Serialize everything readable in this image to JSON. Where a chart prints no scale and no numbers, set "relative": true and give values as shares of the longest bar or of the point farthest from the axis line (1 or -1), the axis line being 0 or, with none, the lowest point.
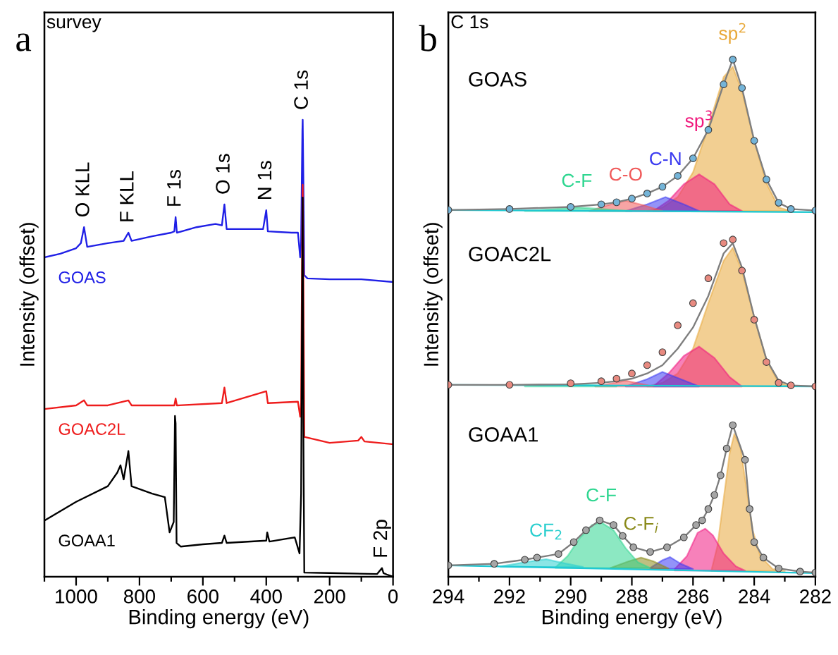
{
  "chart_data": [
    {
      "type": "line",
      "title": "survey",
      "xlabel": "Binding energy (eV)",
      "ylabel": "Intensity (offset)",
      "relative": true,
      "xlim": [
        1100,
        0
      ],
      "xticks": [
        1000,
        800,
        600,
        400,
        200,
        0,
        {
          "value": 1100,
          "label": null
        },
        {
          "value": 900,
          "label": null
        },
        {
          "value": 700,
          "label": null
        },
        {
          "value": 500,
          "label": null
        },
        {
          "value": 300,
          "label": null
        },
        {
          "value": 100,
          "label": null
        }
      ],
      "annotations": [
        "a",
        {
          "text": "O KLL",
          "x": 975,
          "y": 0.765
        },
        {
          "text": "F KLL",
          "x": 835,
          "y": 0.753
        },
        {
          "text": "F 1s",
          "x": 686,
          "y": 0.787
        },
        {
          "text": "O 1s",
          "x": 532,
          "y": 0.815
        },
        {
          "text": "N 1s",
          "x": 400,
          "y": 0.802
        },
        {
          "text": "C 1s",
          "x": 285,
          "y": 1.0
        },
        {
          "text": "F 2p",
          "x": 35,
          "y": 0.019
        }
      ],
      "series": [
        {
          "name": "GOAS",
          "color": "#1f1fe6",
          "x": [
            1100,
            1050,
            1000,
            985,
            975,
            965,
            900,
            850,
            835,
            825,
            760,
            700,
            690,
            686,
            682,
            620,
            560,
            540,
            532,
            525,
            500,
            410,
            400,
            395,
            320,
            300,
            293,
            290,
            286,
            285,
            283,
            280,
            270,
            200,
            100,
            0
          ],
          "values": [
            0.699,
            0.707,
            0.719,
            0.73,
            0.765,
            0.722,
            0.73,
            0.735,
            0.753,
            0.735,
            0.745,
            0.753,
            0.756,
            0.787,
            0.753,
            0.765,
            0.772,
            0.769,
            0.815,
            0.761,
            0.761,
            0.761,
            0.802,
            0.756,
            0.753,
            0.753,
            0.699,
            0.738,
            0.977,
            1.0,
            0.877,
            0.66,
            0.653,
            0.651,
            0.651,
            0.645
          ]
        },
        {
          "name": "GOAC2L",
          "color": "#ee1c1c",
          "x": [
            1100,
            1000,
            975,
            965,
            900,
            835,
            825,
            700,
            690,
            686,
            682,
            540,
            532,
            525,
            400,
            395,
            300,
            293,
            290,
            286,
            285,
            283,
            280,
            200,
            110,
            100,
            90,
            0
          ],
          "values": [
            0.367,
            0.375,
            0.386,
            0.375,
            0.375,
            0.386,
            0.375,
            0.375,
            0.375,
            0.39,
            0.375,
            0.38,
            0.414,
            0.38,
            0.406,
            0.38,
            0.383,
            0.35,
            0.38,
            0.815,
            0.858,
            0.676,
            0.306,
            0.293,
            0.298,
            0.306,
            0.296,
            0.29
          ]
        },
        {
          "name": "GOAA1",
          "color": "#000000",
          "x": [
            1100,
            1000,
            900,
            870,
            860,
            850,
            835,
            825,
            760,
            720,
            705,
            692,
            688,
            686,
            683,
            670,
            600,
            540,
            532,
            525,
            400,
            397,
            390,
            320,
            310,
            295,
            290,
            287,
            285,
            283,
            280,
            200,
            50,
            35,
            30,
            20,
            0
          ],
          "values": [
            0.123,
            0.164,
            0.198,
            0.228,
            0.244,
            0.213,
            0.275,
            0.198,
            0.182,
            0.174,
            0.097,
            0.12,
            0.352,
            0.336,
            0.074,
            0.066,
            0.071,
            0.074,
            0.09,
            0.074,
            0.079,
            0.097,
            0.077,
            0.085,
            0.086,
            0.051,
            0.182,
            0.6,
            0.83,
            0.336,
            0.009,
            0.008,
            0.006,
            0.019,
            0.008,
            0.005,
            0.0
          ]
        }
      ]
    },
    {
      "type": "line",
      "title": "C 1s",
      "xlabel": "Binding energy (eV)",
      "ylabel": "Intensity (offset)",
      "relative": true,
      "xlim": [
        294,
        282
      ],
      "xticks": [
        294,
        292,
        290,
        288,
        286,
        284,
        282,
        {
          "value": 293,
          "label": null
        },
        {
          "value": 291,
          "label": null
        },
        {
          "value": 289,
          "label": null
        },
        {
          "value": 287,
          "label": null
        },
        {
          "value": 285,
          "label": null
        },
        {
          "value": 283,
          "label": null
        }
      ],
      "annotations": [
        "b",
        "GOAS",
        "GOAC2L",
        "GOAA1"
      ],
      "series": [
        {
          "type": "area",
          "name": "sp$^{2}$",
          "color": "#e8a838",
          "x": [
            287.5,
            287,
            286.5,
            286,
            285.5,
            285,
            284.7,
            284.4,
            284,
            283.6,
            283.2,
            282.8
          ],
          "values": [
            0.707,
            0.714,
            0.734,
            0.782,
            0.87,
            0.966,
            0.986,
            0.939,
            0.843,
            0.761,
            0.714,
            0.707
          ]
        },
        {
          "type": "area",
          "name": "sp$^{3}$",
          "color": "#f0197d",
          "x": [
            287.3,
            286.8,
            286.3,
            285.8,
            285.3,
            284.8,
            284.4
          ],
          "values": [
            0.707,
            0.727,
            0.759,
            0.778,
            0.759,
            0.72,
            0.707
          ]
        },
        {
          "type": "area",
          "name": "C-N",
          "color": "#3a3af0",
          "x": [
            288.2,
            287.5,
            286.9,
            286.3,
            285.8
          ],
          "values": [
            0.707,
            0.72,
            0.734,
            0.72,
            0.707
          ]
        },
        {
          "type": "area",
          "name": "C-O",
          "color": "#f05a5a",
          "x": [
            289.4,
            288.8,
            288.2,
            287.6,
            287
          ],
          "values": [
            0.707,
            0.718,
            0.727,
            0.718,
            0.707
          ]
        },
        {
          "type": "area",
          "name": "C-F",
          "color": "#2ed690",
          "x": [
            291.5,
            290.5,
            289.8,
            289,
            288
          ],
          "values": [
            0.707,
            0.711,
            0.714,
            0.711,
            0.707
          ]
        },
        {
          "type": "line",
          "color": "#1fc8d0",
          "x": [
            294,
            282
          ],
          "values": [
            0.709,
            0.705
          ]
        },
        {
          "type": "line",
          "color": "#7f7f7f",
          "x": [
            294,
            292,
            290,
            289,
            288.5,
            288,
            287.5,
            287,
            286.5,
            286,
            285.5,
            285,
            284.7,
            284.4,
            284,
            283.6,
            283.2,
            282.8,
            282
          ],
          "values": [
            0.709,
            0.711,
            0.715,
            0.72,
            0.724,
            0.731,
            0.741,
            0.754,
            0.775,
            0.809,
            0.864,
            0.952,
            1.0,
            0.945,
            0.843,
            0.768,
            0.723,
            0.711,
            0.708
          ]
        },
        {
          "type": "scatter",
          "marker": "circle",
          "color": "#74b4d8",
          "x": [
            294,
            292,
            290,
            289,
            288.5,
            288,
            287.5,
            287,
            286.5,
            286,
            285.5,
            285,
            284.7,
            284.4,
            284,
            283.6,
            283.2,
            282.8,
            282
          ],
          "values": [
            0.709,
            0.711,
            0.715,
            0.72,
            0.724,
            0.731,
            0.741,
            0.754,
            0.775,
            0.809,
            0.864,
            0.952,
            1.0,
            0.945,
            0.843,
            0.768,
            0.723,
            0.711,
            0.708
          ]
        },
        {
          "type": "area",
          "color": "#e8a83a",
          "x": [
            287.5,
            287,
            286.5,
            286,
            285.5,
            285,
            284.7,
            284.4,
            284,
            283.6,
            283.2,
            282.8
          ],
          "values": [
            0.368,
            0.375,
            0.393,
            0.441,
            0.529,
            0.611,
            0.636,
            0.591,
            0.502,
            0.42,
            0.375,
            0.368
          ]
        },
        {
          "type": "area",
          "color": "#f0197f",
          "x": [
            287.3,
            286.8,
            286.3,
            285.8,
            285.3,
            284.8,
            284.4
          ],
          "values": [
            0.368,
            0.393,
            0.427,
            0.445,
            0.423,
            0.386,
            0.368
          ]
        },
        {
          "type": "area",
          "color": "#3a3af2",
          "x": [
            288.2,
            287.5,
            287,
            286.4,
            285.8
          ],
          "values": [
            0.368,
            0.382,
            0.396,
            0.382,
            0.368
          ]
        },
        {
          "type": "area",
          "color": "#f05a5c",
          "x": [
            289.2,
            288.2,
            287.3
          ],
          "values": [
            0.368,
            0.379,
            0.368
          ]
        },
        {
          "type": "area",
          "color": "#2ed692",
          "x": [
            291.5,
            290,
            288.5
          ],
          "values": [
            0.368,
            0.372,
            0.368
          ]
        },
        {
          "type": "line",
          "color": "#1fc8d2",
          "x": [
            294,
            282
          ],
          "values": [
            0.371,
            0.368
          ]
        },
        {
          "type": "line",
          "color": "#7e7e7e",
          "x": [
            294,
            292,
            290,
            289,
            288.5,
            288,
            287.5,
            287,
            286.5,
            286,
            285.5,
            285,
            284.7,
            284.4,
            284,
            283.6,
            283.2,
            282.8,
            282
          ],
          "values": [
            0.371,
            0.371,
            0.372,
            0.375,
            0.378,
            0.383,
            0.393,
            0.409,
            0.441,
            0.482,
            0.543,
            0.625,
            0.645,
            0.598,
            0.502,
            0.42,
            0.379,
            0.37,
            0.368
          ]
        },
        {
          "type": "scatter",
          "marker": "circle",
          "color": "#e88a80",
          "x": [
            294,
            292,
            290,
            289,
            288.5,
            288,
            287.5,
            287,
            286.5,
            286,
            285.5,
            285,
            284.7,
            284.4,
            284,
            283.6,
            283.2,
            282.8,
            282
          ],
          "values": [
            0.371,
            0.371,
            0.374,
            0.378,
            0.383,
            0.393,
            0.409,
            0.434,
            0.486,
            0.529,
            0.577,
            0.645,
            0.652,
            0.592,
            0.497,
            0.415,
            0.375,
            0.37,
            0.368
          ]
        },
        {
          "type": "area",
          "color": "#e8a83c",
          "x": [
            285.4,
            285.2,
            285.0,
            284.8,
            284.65,
            284.45,
            284.25,
            284.05,
            283.8,
            283.4,
            283
          ],
          "values": [
            0.012,
            0.06,
            0.15,
            0.24,
            0.276,
            0.25,
            0.17,
            0.09,
            0.04,
            0.015,
            0.011
          ]
        },
        {
          "type": "area",
          "color": "#f01981",
          "x": [
            286.6,
            286.2,
            285.85,
            285.6,
            285.35,
            285.0,
            284.6,
            284.3
          ],
          "values": [
            0.015,
            0.04,
            0.085,
            0.093,
            0.08,
            0.045,
            0.02,
            0.012
          ]
        },
        {
          "type": "area",
          "color": "#3a3af4",
          "x": [
            287.4,
            287,
            286.75,
            286.4,
            286.0
          ],
          "values": [
            0.017,
            0.032,
            0.038,
            0.025,
            0.015
          ]
        },
        {
          "type": "area",
          "name": "C-F$_{i}$",
          "color": "#8a8a1a",
          "x": [
            288.7,
            288.1,
            287.7,
            287.3,
            286.8
          ],
          "values": [
            0.017,
            0.03,
            0.037,
            0.03,
            0.016
          ]
        },
        {
          "type": "area",
          "name": "C-F",
          "color": "#2ed690",
          "x": [
            290.5,
            290.1,
            289.7,
            289.3,
            289.0,
            288.6,
            288.2,
            287.8,
            287.4
          ],
          "values": [
            0.018,
            0.04,
            0.075,
            0.1,
            0.105,
            0.09,
            0.055,
            0.028,
            0.017
          ]
        },
        {
          "type": "area",
          "name": "CF$_{2}$",
          "color": "#2ccfcf",
          "x": [
            292.3,
            291.5,
            290.8,
            290.2,
            289.6
          ],
          "values": [
            0.02,
            0.028,
            0.034,
            0.026,
            0.019
          ]
        },
        {
          "type": "line",
          "color": "#1fc8d4",
          "x": [
            294,
            282
          ],
          "values": [
            0.022,
            0.007
          ]
        },
        {
          "type": "line",
          "color": "#7d7d7d",
          "x": [
            294,
            292.5,
            291.5,
            291.1,
            290.4,
            289.9,
            289.5,
            289.05,
            288.6,
            288.3,
            287.95,
            287.4,
            286.85,
            286.3,
            285.9,
            285.7,
            285.5,
            285.3,
            285.1,
            284.9,
            284.7,
            284.3,
            284.15,
            284.0,
            283.7,
            283.2,
            282.5,
            282
          ],
          "values": [
            0.022,
            0.025,
            0.033,
            0.037,
            0.044,
            0.067,
            0.09,
            0.109,
            0.1,
            0.079,
            0.057,
            0.048,
            0.057,
            0.076,
            0.1,
            0.109,
            0.131,
            0.158,
            0.196,
            0.248,
            0.293,
            0.226,
            0.131,
            0.067,
            0.037,
            0.016,
            0.01,
            0.008
          ]
        },
        {
          "type": "scatter",
          "marker": "circle",
          "color": "#a6a6a6",
          "x": [
            294,
            292.5,
            291.5,
            291.1,
            290.4,
            289.9,
            289.5,
            289.05,
            288.6,
            288.3,
            287.95,
            287.4,
            286.85,
            286.3,
            285.9,
            285.7,
            285.5,
            285.3,
            285.1,
            284.9,
            284.7,
            284.3,
            284.15,
            284.0,
            283.7,
            283.2,
            282.5,
            282
          ],
          "values": [
            0.022,
            0.025,
            0.033,
            0.037,
            0.044,
            0.067,
            0.09,
            0.109,
            0.1,
            0.079,
            0.057,
            0.048,
            0.057,
            0.076,
            0.1,
            0.109,
            0.131,
            0.158,
            0.196,
            0.248,
            0.293,
            0.226,
            0.131,
            0.067,
            0.037,
            0.016,
            0.01,
            0.008
          ]
        }
      ]
    }
  ]
}
